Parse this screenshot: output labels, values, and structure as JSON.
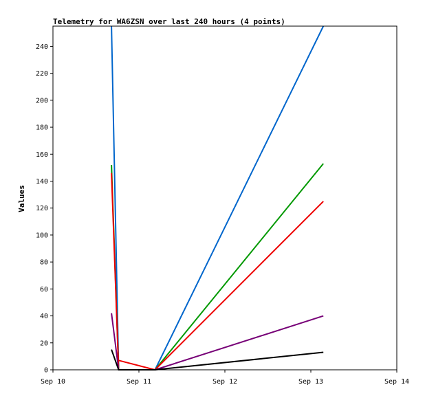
{
  "chart_data": {
    "type": "line",
    "title": "Telemetry for WA6ZSN over last 240 hours (4 points)",
    "xlabel": "",
    "ylabel": "Values",
    "x_ticks": [
      "Sep 10",
      "Sep 11",
      "Sep 12",
      "Sep 13",
      "Sep 14"
    ],
    "xlim": [
      "Sep 10 00:00",
      "Sep 14 00:00"
    ],
    "ylim": [
      0,
      255
    ],
    "y_ticks": [
      0,
      20,
      40,
      60,
      80,
      100,
      120,
      140,
      160,
      180,
      200,
      220,
      240
    ],
    "grid": false,
    "legend": "none",
    "segments": [
      {
        "color": "#0066cc",
        "points": [
          [
            "Sep 10 16:20",
            255
          ],
          [
            "Sep 10 18:20",
            0
          ],
          [
            "Sep 11 04:30",
            0
          ],
          [
            "Sep 13 03:30",
            255
          ]
        ]
      },
      {
        "color": "#009900",
        "points": [
          [
            "Sep 10 16:20",
            152
          ],
          [
            "Sep 10 18:20",
            0
          ],
          [
            "Sep 11 04:30",
            0
          ],
          [
            "Sep 13 03:30",
            153
          ]
        ]
      },
      {
        "color": "#ee0000",
        "points": [
          [
            "Sep 10 16:20",
            146
          ],
          [
            "Sep 10 18:20",
            0
          ]
        ]
      },
      {
        "color": "#ee0000",
        "points": [
          [
            "Sep 10 18:20",
            7
          ],
          [
            "Sep 11 04:30",
            0
          ],
          [
            "Sep 13 03:30",
            125
          ]
        ]
      },
      {
        "color": "#770077",
        "points": [
          [
            "Sep 10 16:20",
            42
          ],
          [
            "Sep 10 18:20",
            0
          ],
          [
            "Sep 11 04:30",
            0
          ],
          [
            "Sep 13 03:30",
            40
          ]
        ]
      },
      {
        "color": "#000000",
        "points": [
          [
            "Sep 10 16:20",
            15
          ],
          [
            "Sep 10 18:20",
            0
          ],
          [
            "Sep 11 04:30",
            0
          ],
          [
            "Sep 13 03:30",
            13
          ]
        ]
      }
    ]
  }
}
